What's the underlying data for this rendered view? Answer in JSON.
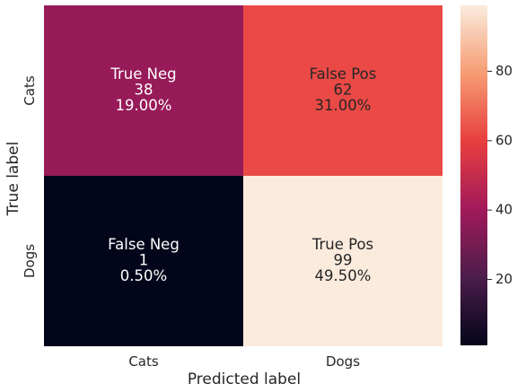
{
  "chart_data": {
    "type": "heatmap",
    "title": "",
    "xlabel": "Predicted label",
    "ylabel": "True label",
    "x_categories": [
      "Cats",
      "Dogs"
    ],
    "y_categories": [
      "Cats",
      "Dogs"
    ],
    "values": [
      [
        38,
        62
      ],
      [
        1,
        99
      ]
    ],
    "cell_labels": [
      [
        [
          "True Neg",
          "38",
          "19.00%"
        ],
        [
          "False Pos",
          "62",
          "31.00%"
        ]
      ],
      [
        [
          "False Neg",
          "1",
          "0.50%"
        ],
        [
          "True Pos",
          "99",
          "49.50%"
        ]
      ]
    ],
    "colorbar": {
      "min": 1,
      "max": 99,
      "ticks": [
        20,
        40,
        60,
        80
      ],
      "colormap": "rocket",
      "colors": [
        "#03051a",
        "#4c1d4b",
        "#a11a5b",
        "#e83f3f",
        "#f69c73",
        "#faebdd"
      ]
    }
  }
}
